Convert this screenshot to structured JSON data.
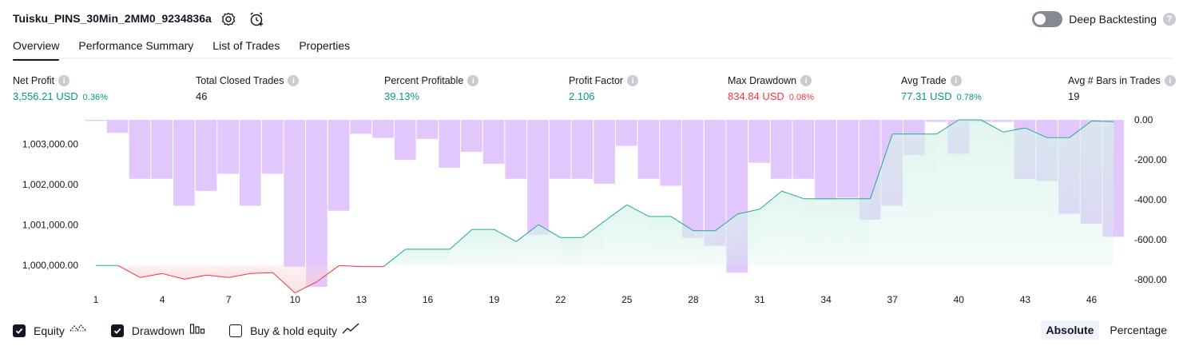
{
  "header": {
    "strategy_title": "Tuisku_PINS_30Min_2MM0_9234836a",
    "settings_icon": "settings-gear-icon",
    "add_alert_icon": "add-alert-clock-icon",
    "deep_backtesting_label": "Deep Backtesting",
    "deep_backtesting_enabled": false,
    "help_glyph": "?"
  },
  "tabs": [
    {
      "label": "Overview",
      "active": true
    },
    {
      "label": "Performance Summary",
      "active": false
    },
    {
      "label": "List of Trades",
      "active": false
    },
    {
      "label": "Properties",
      "active": false
    }
  ],
  "stats": [
    {
      "label": "Net Profit",
      "value": "3,556.21 USD",
      "pct": "0.36%",
      "color": "green"
    },
    {
      "label": "Total Closed Trades",
      "value": "46",
      "pct": "",
      "color": "dark"
    },
    {
      "label": "Percent Profitable",
      "value": "39.13%",
      "pct": "",
      "color": "green"
    },
    {
      "label": "Profit Factor",
      "value": "2.106",
      "pct": "",
      "color": "green"
    },
    {
      "label": "Max Drawdown",
      "value": "834.84 USD",
      "pct": "0.08%",
      "color": "red"
    },
    {
      "label": "Avg Trade",
      "value": "77.31 USD",
      "pct": "0.78%",
      "color": "green"
    },
    {
      "label": "Avg # Bars in Trades",
      "value": "19",
      "pct": "",
      "color": "dark"
    }
  ],
  "chart_data": {
    "type": "line",
    "x_ticks": [
      "1",
      "4",
      "7",
      "10",
      "13",
      "16",
      "19",
      "22",
      "25",
      "28",
      "31",
      "34",
      "37",
      "40",
      "43",
      "46"
    ],
    "left_axis": {
      "ticks": [
        "1,003,000.00",
        "1,002,000.00",
        "1,001,000.00",
        "1,000,000.00"
      ],
      "tick_values": [
        1003000,
        1002000,
        1001000,
        1000000
      ],
      "ylim": [
        999450,
        1003600
      ]
    },
    "right_axis": {
      "ticks": [
        "0.00",
        "-200.00",
        "-400.00",
        "-600.00",
        "-800.00"
      ],
      "tick_values": [
        0,
        -200,
        -400,
        -600,
        -800
      ],
      "ylim": [
        -840,
        0
      ]
    },
    "series": [
      {
        "kind": "equity",
        "x": [
          1,
          2,
          3,
          4,
          5,
          6,
          7,
          8,
          9,
          10,
          11,
          12,
          13,
          14,
          15,
          16,
          17,
          18,
          19,
          20,
          21,
          22,
          23,
          24,
          25,
          26,
          27,
          28,
          29,
          30,
          31,
          32,
          33,
          34,
          35,
          36,
          37,
          38,
          39,
          40,
          41,
          42,
          43,
          44,
          45,
          46,
          47
        ],
        "values": [
          1000000,
          1000000,
          999700,
          999800,
          999660,
          999760,
          999700,
          999800,
          999820,
          999320,
          999600,
          1000000,
          999970,
          999970,
          1000400,
          1000400,
          1000400,
          1000890,
          1000890,
          1000590,
          1001010,
          1000690,
          1000690,
          1001100,
          1001500,
          1001210,
          1001210,
          1000860,
          1000860,
          1001270,
          1001390,
          1001840,
          1001650,
          1001650,
          1001650,
          1001650,
          1003250,
          1003250,
          1003250,
          1003600,
          1003600,
          1003300,
          1003400,
          1003160,
          1003160,
          1003570,
          1003556
        ]
      },
      {
        "kind": "drawdown",
        "x": [
          1,
          2,
          3,
          4,
          5,
          6,
          7,
          8,
          9,
          10,
          11,
          12,
          13,
          14,
          15,
          16,
          17,
          18,
          19,
          20,
          21,
          22,
          23,
          24,
          25,
          26,
          27,
          28,
          29,
          30,
          31,
          32,
          33,
          34,
          35,
          36,
          37,
          38,
          39,
          40,
          41,
          42,
          43,
          44,
          45,
          46,
          47
        ],
        "values": [
          -5,
          -65,
          -295,
          -295,
          -430,
          -355,
          -270,
          -430,
          -270,
          -735,
          -835,
          -455,
          -70,
          -90,
          -200,
          -95,
          -240,
          -160,
          -220,
          -295,
          -575,
          -295,
          -295,
          -320,
          -130,
          -295,
          -330,
          -590,
          -630,
          -765,
          -215,
          -295,
          -295,
          -400,
          -390,
          -500,
          -430,
          -175,
          -10,
          -170,
          -10,
          -10,
          -295,
          -305,
          -470,
          -520,
          -585
        ]
      }
    ]
  },
  "legend": [
    {
      "label": "Equity",
      "checked": true,
      "icon": "equity-line-icon"
    },
    {
      "label": "Drawdown",
      "checked": true,
      "icon": "drawdown-bars-icon"
    },
    {
      "label": "Buy & hold equity",
      "checked": false,
      "icon": "buy-hold-line-icon"
    }
  ],
  "modes": [
    {
      "label": "Absolute",
      "active": true
    },
    {
      "label": "Percentage",
      "active": false
    }
  ],
  "colors": {
    "equity_line": "#22ab94",
    "equity_fill": "#d6f2ea",
    "equity_negative": "#f23645",
    "equity_negative_fill": "#fbd5d8",
    "drawdown_bar": "#e0c4fc",
    "green": "#089981",
    "red": "#f23645"
  }
}
